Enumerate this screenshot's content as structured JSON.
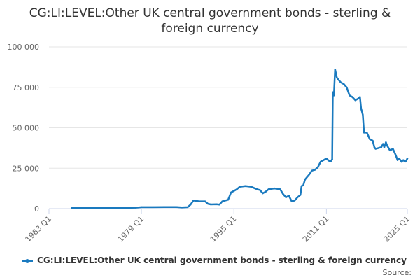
{
  "page": {
    "title": "CG:LI:LEVEL:Other UK central government bonds - sterling & foreign currency",
    "credits": "Source:",
    "colors": {
      "series": "#1a7abf",
      "grid": "#e6e6e6",
      "axis_text": "#666666"
    }
  },
  "chart_data": {
    "type": "line",
    "title": "CG:LI:LEVEL:Other UK central government bonds - sterling & foreign currency",
    "xlabel": "",
    "ylabel": "",
    "x_ticks": [
      "1963 Q1",
      "1979 Q1",
      "1995 Q1",
      "2011 Q1",
      "2025 Q1"
    ],
    "y_ticks": [
      "0",
      "25 000",
      "50 000",
      "75 000",
      "100 000"
    ],
    "ylim": [
      0,
      100000
    ],
    "xlim": [
      1963.0,
      2025.0
    ],
    "grid": "horizontal",
    "legend": "bottom-center",
    "series": [
      {
        "name": "CG:LI:LEVEL:Other UK central government bonds - sterling & foreign currency",
        "points": [
          [
            1967.0,
            400
          ],
          [
            1970.0,
            400
          ],
          [
            1973.0,
            400
          ],
          [
            1976.0,
            450
          ],
          [
            1978.0,
            600
          ],
          [
            1979.0,
            900
          ],
          [
            1981.0,
            900
          ],
          [
            1983.0,
            1000
          ],
          [
            1985.0,
            1000
          ],
          [
            1986.0,
            800
          ],
          [
            1987.0,
            900
          ],
          [
            1987.5,
            2500
          ],
          [
            1988.0,
            5000
          ],
          [
            1989.0,
            4500
          ],
          [
            1990.0,
            4500
          ],
          [
            1990.5,
            3000
          ],
          [
            1991.0,
            2600
          ],
          [
            1992.0,
            2700
          ],
          [
            1992.5,
            2500
          ],
          [
            1993.0,
            4500
          ],
          [
            1994.0,
            5500
          ],
          [
            1994.5,
            10000
          ],
          [
            1995.0,
            11000
          ],
          [
            1995.5,
            12000
          ],
          [
            1996.0,
            13500
          ],
          [
            1997.0,
            14000
          ],
          [
            1998.0,
            13500
          ],
          [
            1999.0,
            12000
          ],
          [
            1999.5,
            11500
          ],
          [
            2000.0,
            9500
          ],
          [
            2000.5,
            10500
          ],
          [
            2001.0,
            12000
          ],
          [
            2002.0,
            12500
          ],
          [
            2003.0,
            12000
          ],
          [
            2003.5,
            9000
          ],
          [
            2004.0,
            7000
          ],
          [
            2004.5,
            8000
          ],
          [
            2005.0,
            4500
          ],
          [
            2005.5,
            5000
          ],
          [
            2006.0,
            7000
          ],
          [
            2006.5,
            8500
          ],
          [
            2006.7,
            14000
          ],
          [
            2007.0,
            14500
          ],
          [
            2007.3,
            18000
          ],
          [
            2008.0,
            21000
          ],
          [
            2008.5,
            23500
          ],
          [
            2009.0,
            24000
          ],
          [
            2009.5,
            25500
          ],
          [
            2010.0,
            29000
          ],
          [
            2010.5,
            30000
          ],
          [
            2011.0,
            31000
          ],
          [
            2011.3,
            30000
          ],
          [
            2011.5,
            29500
          ],
          [
            2011.8,
            29500
          ],
          [
            2012.0,
            30500
          ],
          [
            2012.1,
            72000
          ],
          [
            2012.3,
            70000
          ],
          [
            2012.5,
            86000
          ],
          [
            2012.8,
            81000
          ],
          [
            2013.0,
            80000
          ],
          [
            2013.5,
            78000
          ],
          [
            2014.0,
            77000
          ],
          [
            2014.5,
            75000
          ],
          [
            2015.0,
            70000
          ],
          [
            2015.5,
            69000
          ],
          [
            2016.0,
            67000
          ],
          [
            2016.5,
            68000
          ],
          [
            2016.8,
            69000
          ],
          [
            2017.0,
            62000
          ],
          [
            2017.3,
            58000
          ],
          [
            2017.5,
            47000
          ],
          [
            2018.0,
            47000
          ],
          [
            2018.5,
            43000
          ],
          [
            2019.0,
            42000
          ],
          [
            2019.3,
            38000
          ],
          [
            2019.5,
            37000
          ],
          [
            2020.0,
            37500
          ],
          [
            2020.5,
            38000
          ],
          [
            2020.8,
            40000
          ],
          [
            2021.0,
            38000
          ],
          [
            2021.3,
            41000
          ],
          [
            2021.5,
            39000
          ],
          [
            2022.0,
            36000
          ],
          [
            2022.5,
            37000
          ],
          [
            2023.0,
            33000
          ],
          [
            2023.3,
            30000
          ],
          [
            2023.6,
            31000
          ],
          [
            2024.0,
            29000
          ],
          [
            2024.3,
            30000
          ],
          [
            2024.6,
            29000
          ],
          [
            2024.8,
            29500
          ],
          [
            2025.0,
            31000
          ]
        ]
      }
    ]
  }
}
